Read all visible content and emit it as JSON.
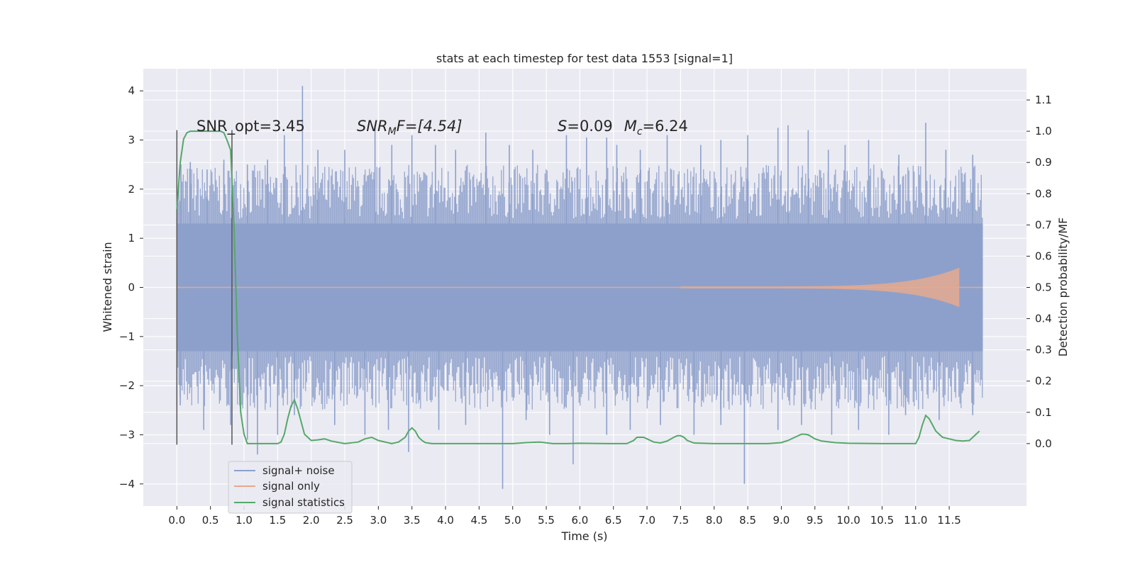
{
  "chart_data": {
    "type": "line",
    "title": "stats at each timestep for test data 1553 [signal=1]",
    "xlabel": "Time (s)",
    "ylabel_left": "Whitened strain",
    "ylabel_right": "Detection probability/MF",
    "xlim": [
      -0.5,
      12.65
    ],
    "ylim_left": [
      -4.45,
      4.45
    ],
    "ylim_right": [
      -0.2,
      1.2
    ],
    "x_ticks": [
      0.0,
      0.5,
      1.0,
      1.5,
      2.0,
      2.5,
      3.0,
      3.5,
      4.0,
      4.5,
      5.0,
      5.5,
      6.0,
      6.5,
      7.0,
      7.5,
      8.0,
      8.5,
      9.0,
      9.5,
      10.0,
      10.5,
      11.0,
      11.5
    ],
    "x_tick_labels": [
      "0.0",
      "0.5",
      "1.0",
      "1.5",
      "2.0",
      "2.5",
      "3.0",
      "3.5",
      "4.0",
      "4.5",
      "5.0",
      "5.5",
      "6.0",
      "6.5",
      "7.0",
      "7.5",
      "8.0",
      "8.5",
      "9.0",
      "9.5",
      "10.0",
      "10.5",
      "11.0",
      "11.5"
    ],
    "y_left_ticks": [
      -4,
      -3,
      -2,
      -1,
      0,
      1,
      2,
      3,
      4
    ],
    "y_left_tick_labels": [
      "−4",
      "−3",
      "−2",
      "−1",
      "0",
      "1",
      "2",
      "3",
      "4"
    ],
    "y_right_ticks": [
      0.0,
      0.1,
      0.2,
      0.3,
      0.4,
      0.5,
      0.6,
      0.7,
      0.8,
      0.9,
      1.0,
      1.1
    ],
    "y_right_tick_labels": [
      "0.0",
      "0.1",
      "0.2",
      "0.3",
      "0.4",
      "0.5",
      "0.6",
      "0.7",
      "0.8",
      "0.9",
      "1.0",
      "1.1"
    ],
    "grid": true,
    "legend_position": "lower-left",
    "series": [
      {
        "name": "signal+ noise",
        "color": "#8da0cb",
        "x_range": [
          0.0,
          12.0
        ],
        "band_core": [
          -1.3,
          1.3
        ],
        "spikes": [
          [
            0.06,
            2.5
          ],
          [
            0.2,
            2.55
          ],
          [
            0.45,
            2.4
          ],
          [
            0.7,
            2.6
          ],
          [
            1.05,
            2.5
          ],
          [
            1.35,
            2.6
          ],
          [
            1.6,
            3.1
          ],
          [
            1.87,
            4.1
          ],
          [
            2.1,
            2.8
          ],
          [
            2.5,
            2.8
          ],
          [
            2.95,
            3.3
          ],
          [
            3.2,
            2.9
          ],
          [
            3.5,
            3.1
          ],
          [
            3.85,
            2.9
          ],
          [
            4.15,
            2.8
          ],
          [
            4.6,
            3.15
          ],
          [
            4.95,
            2.9
          ],
          [
            5.3,
            2.8
          ],
          [
            5.8,
            3.1
          ],
          [
            6.1,
            3.05
          ],
          [
            6.4,
            3.05
          ],
          [
            6.55,
            2.9
          ],
          [
            6.9,
            2.8
          ],
          [
            7.3,
            3.1
          ],
          [
            7.8,
            2.9
          ],
          [
            8.1,
            3.0
          ],
          [
            8.5,
            3.1
          ],
          [
            8.95,
            3.25
          ],
          [
            9.1,
            3.3
          ],
          [
            9.4,
            3.2
          ],
          [
            9.7,
            2.8
          ],
          [
            9.95,
            2.9
          ],
          [
            10.3,
            3.0
          ],
          [
            10.75,
            2.7
          ],
          [
            11.15,
            3.35
          ],
          [
            11.45,
            2.8
          ],
          [
            11.85,
            2.7
          ]
        ],
        "dips": [
          [
            0.05,
            -2.4
          ],
          [
            0.4,
            -2.9
          ],
          [
            0.8,
            -2.8
          ],
          [
            1.05,
            -3.1
          ],
          [
            1.2,
            -3.4
          ],
          [
            1.5,
            -3.0
          ],
          [
            1.75,
            -2.6
          ],
          [
            2.35,
            -2.8
          ],
          [
            2.8,
            -3.0
          ],
          [
            3.15,
            -2.9
          ],
          [
            3.45,
            -3.35
          ],
          [
            3.9,
            -2.9
          ],
          [
            4.3,
            -2.8
          ],
          [
            4.85,
            -4.1
          ],
          [
            5.2,
            -2.7
          ],
          [
            5.55,
            -3.0
          ],
          [
            5.9,
            -3.6
          ],
          [
            6.4,
            -3.0
          ],
          [
            6.75,
            -2.9
          ],
          [
            7.2,
            -2.8
          ],
          [
            7.7,
            -3.0
          ],
          [
            8.1,
            -2.8
          ],
          [
            8.45,
            -4.0
          ],
          [
            8.95,
            -2.9
          ],
          [
            9.3,
            -2.8
          ],
          [
            9.75,
            -3.0
          ],
          [
            10.15,
            -2.9
          ],
          [
            10.6,
            -3.0
          ],
          [
            10.85,
            -2.6
          ],
          [
            11.35,
            -2.7
          ],
          [
            11.85,
            -2.6
          ]
        ]
      },
      {
        "name": "signal only",
        "color": "#e5a98f",
        "x_range": [
          7.5,
          11.65
        ],
        "amplitude_start": 0.02,
        "amplitude_end": 0.4
      },
      {
        "name": "signal statistics",
        "color": "#55a868",
        "axis": "right",
        "x": [
          0.0,
          0.05,
          0.1,
          0.15,
          0.2,
          0.3,
          0.4,
          0.5,
          0.6,
          0.65,
          0.7,
          0.75,
          0.8,
          0.85,
          0.9,
          0.95,
          1.0,
          1.05,
          1.1,
          1.2,
          1.3,
          1.4,
          1.5,
          1.55,
          1.6,
          1.65,
          1.7,
          1.75,
          1.8,
          1.85,
          1.9,
          2.0,
          2.1,
          2.2,
          2.3,
          2.5,
          2.7,
          2.8,
          2.9,
          3.0,
          3.2,
          3.3,
          3.4,
          3.45,
          3.5,
          3.55,
          3.6,
          3.65,
          3.7,
          3.8,
          4.0,
          4.5,
          5.0,
          5.2,
          5.4,
          5.6,
          5.8,
          6.0,
          6.4,
          6.7,
          6.8,
          6.85,
          6.9,
          6.95,
          7.0,
          7.1,
          7.2,
          7.3,
          7.4,
          7.45,
          7.5,
          7.55,
          7.6,
          7.7,
          8.0,
          8.5,
          8.8,
          9.0,
          9.1,
          9.2,
          9.3,
          9.35,
          9.4,
          9.5,
          9.6,
          9.8,
          10.0,
          10.5,
          11.0,
          11.05,
          11.1,
          11.15,
          11.2,
          11.25,
          11.3,
          11.4,
          11.5,
          11.6,
          11.7,
          11.8,
          11.9,
          11.95
        ],
        "y": [
          0.75,
          0.9,
          0.975,
          0.995,
          1.0,
          1.0,
          1.0,
          1.0,
          1.0,
          1.0,
          0.995,
          0.97,
          0.94,
          0.7,
          0.35,
          0.1,
          0.03,
          0.0,
          0.0,
          0.0,
          0.0,
          0.0,
          0.0,
          0.005,
          0.03,
          0.08,
          0.12,
          0.14,
          0.11,
          0.07,
          0.03,
          0.01,
          0.012,
          0.015,
          0.008,
          0.0,
          0.005,
          0.015,
          0.02,
          0.01,
          0.0,
          0.005,
          0.02,
          0.04,
          0.05,
          0.04,
          0.02,
          0.01,
          0.003,
          0.0,
          0.0,
          0.0,
          0.0,
          0.003,
          0.005,
          0.0,
          0.0,
          0.001,
          0.0,
          0.0,
          0.01,
          0.02,
          0.02,
          0.02,
          0.015,
          0.005,
          0.002,
          0.008,
          0.02,
          0.025,
          0.025,
          0.02,
          0.01,
          0.002,
          0.0,
          0.0,
          0.0,
          0.003,
          0.01,
          0.02,
          0.03,
          0.03,
          0.028,
          0.015,
          0.008,
          0.003,
          0.001,
          0.0,
          0.0,
          0.02,
          0.06,
          0.09,
          0.08,
          0.06,
          0.04,
          0.02,
          0.015,
          0.01,
          0.008,
          0.01,
          0.03,
          0.04
        ]
      }
    ],
    "vertical_markers": [
      {
        "x": 0.0,
        "ymin": -3.2,
        "ymax": 3.2,
        "color": "#555555"
      },
      {
        "x": 0.82,
        "ymin": -3.2,
        "ymax": 3.2,
        "color": "#555555"
      }
    ],
    "annotations": [
      {
        "label": "SNR_opt=3.45",
        "x": 0.2,
        "y": 3.3
      },
      {
        "label": "SNR_MF=[4.54]",
        "x": 2.6,
        "y": 3.3
      },
      {
        "label": "S=0.09  M_c=6.24",
        "x": 5.6,
        "y": 3.3
      }
    ],
    "annotation_text": {
      "snr_opt": "SNR_opt=3.45",
      "snr_mf_main": "SNR",
      "snr_mf_sub": "M",
      "snr_mf_rest": "F=[4.54]",
      "s_label": "S",
      "s_value": "=0.09",
      "mc_main": "M",
      "mc_sub": "c",
      "mc_value": "=6.24"
    }
  }
}
